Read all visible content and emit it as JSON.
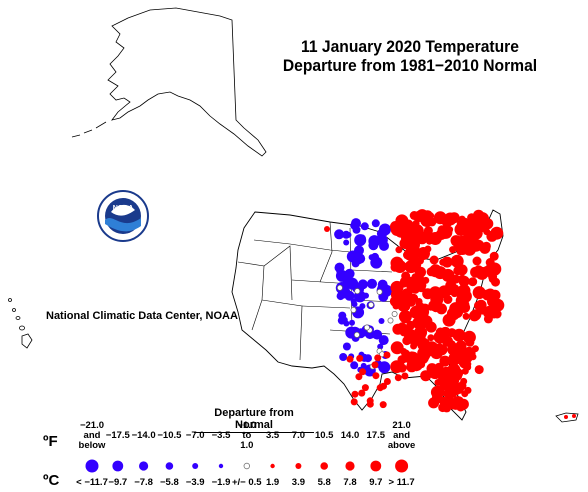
{
  "title": {
    "line1": "11 January 2020 Temperature",
    "line2": "Departure from 1981−2010 Normal"
  },
  "credit": "National Climatic Data Center, NOAA",
  "logo": {
    "text": "NOAA",
    "icon": "noaa-seal-icon"
  },
  "legend": {
    "title": "Departure from Normal",
    "unit_f": "ºF",
    "unit_c": "ºC",
    "bins": [
      {
        "f": "−21.0\nand\nbelow",
        "c": "< −11.7",
        "color": "#3300ff",
        "size": 6.5
      },
      {
        "f": "−17.5",
        "c": "−9.7",
        "color": "#3300ff",
        "size": 5.4
      },
      {
        "f": "−14.0",
        "c": "−7.8",
        "color": "#3300ff",
        "size": 4.6
      },
      {
        "f": "−10.5",
        "c": "−5.8",
        "color": "#3300ff",
        "size": 3.8
      },
      {
        "f": "−7.0",
        "c": "−3.9",
        "color": "#3300ff",
        "size": 3.0
      },
      {
        "f": "−3.5",
        "c": "−1.9",
        "color": "#3300ff",
        "size": 2.2
      },
      {
        "f": "−1.0\nto\n1.0",
        "c": "+/− 0.5",
        "color": "#ffffff",
        "size": 2.8
      },
      {
        "f": "3.5",
        "c": "1.9",
        "color": "#ff0000",
        "size": 2.2
      },
      {
        "f": "7.0",
        "c": "3.9",
        "color": "#ff0000",
        "size": 3.0
      },
      {
        "f": "10.5",
        "c": "5.8",
        "color": "#ff0000",
        "size": 3.8
      },
      {
        "f": "14.0",
        "c": "7.8",
        "color": "#ff0000",
        "size": 4.6
      },
      {
        "f": "17.5",
        "c": "9.7",
        "color": "#ff0000",
        "size": 5.4
      },
      {
        "f": "21.0\nand\nabove",
        "c": "> 11.7",
        "color": "#ff0000",
        "size": 6.5
      }
    ]
  },
  "colors": {
    "cold": "#3300ff",
    "warm": "#ff0000",
    "neutral": "#ffffff",
    "outline": "#000000"
  }
}
